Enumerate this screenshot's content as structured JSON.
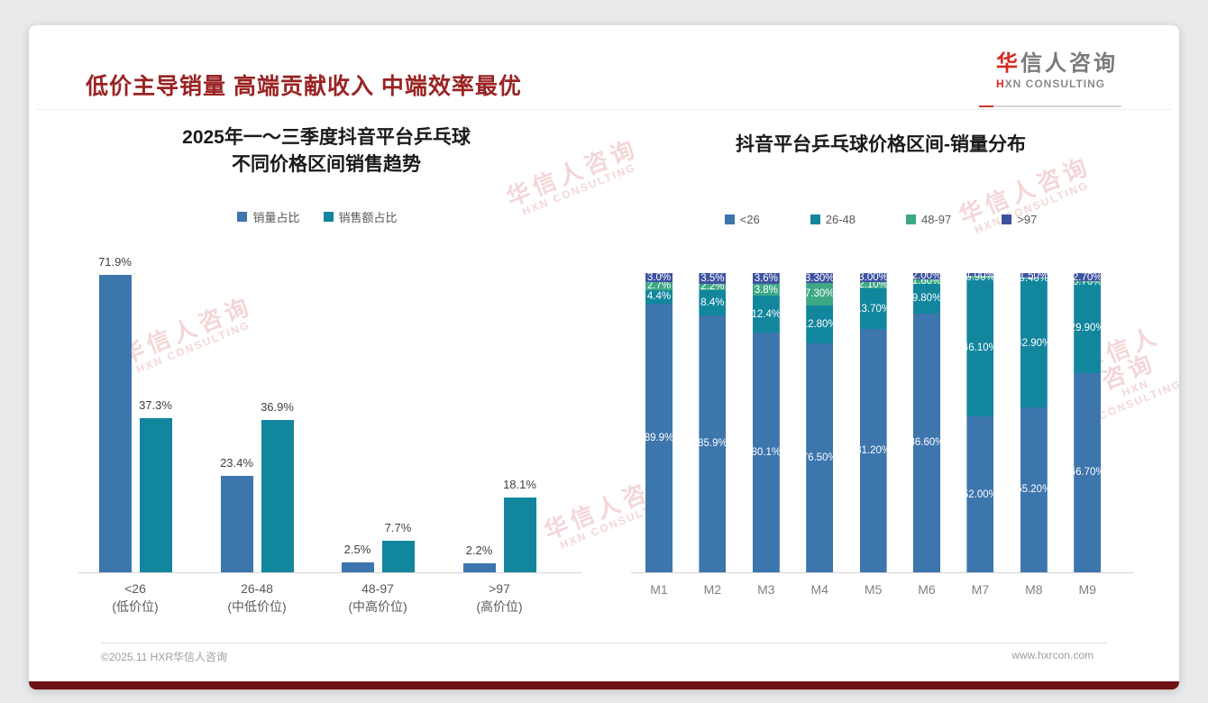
{
  "page": {
    "title": "低价主导销量 高端贡献收入 中端效率最优"
  },
  "logo": {
    "cn_accent": "华",
    "cn_rest": "信人咨询",
    "en_accent": "H",
    "en_rest": "XN CONSULTING"
  },
  "watermark": {
    "line1": "华信人咨询",
    "line2": "HXN CONSULTING"
  },
  "footer": {
    "left": "©2025.11 HXR华信人咨询",
    "right": "www.hxrcon.com"
  },
  "colors": {
    "blue": "#3D75AD",
    "teal": "#12869D",
    "green": "#3EA886",
    "indigo": "#3E53A0",
    "accent_red": "#9A2323"
  },
  "chart_data": [
    {
      "type": "bar",
      "title": "2025年一～三季度抖音平台乒乓球\n不同价格区间销售趋势",
      "categories": [
        "<26",
        "26-48",
        "48-97",
        ">97"
      ],
      "category_sublabels": [
        "(低价位)",
        "(中低价位)",
        "(中高价位)",
        "(高价位)"
      ],
      "series": [
        {
          "name": "销量占比",
          "color": "#3D75AD",
          "values": [
            71.9,
            23.4,
            2.5,
            2.2
          ],
          "labels": [
            "71.9%",
            "23.4%",
            "2.5%",
            "2.2%"
          ]
        },
        {
          "name": "销售额占比",
          "color": "#12869D",
          "values": [
            37.3,
            36.9,
            7.7,
            18.1
          ],
          "labels": [
            "37.3%",
            "36.9%",
            "7.7%",
            "18.1%"
          ]
        }
      ],
      "ylim": [
        0,
        80
      ],
      "grid": false,
      "legend_position": "top",
      "value_suffix": "%"
    },
    {
      "type": "bar",
      "subtype": "stacked",
      "title": "抖音平台乒乓球价格区间-销量分布",
      "categories": [
        "M1",
        "M2",
        "M3",
        "M4",
        "M5",
        "M6",
        "M7",
        "M8",
        "M9"
      ],
      "series": [
        {
          "name": "<26",
          "color": "#3D75AD",
          "values": [
            89.9,
            85.9,
            80.1,
            76.5,
            81.2,
            86.6,
            52.0,
            55.2,
            66.7
          ],
          "labels": [
            "89.9%",
            "85.9%",
            "80.1%",
            "76.50%",
            "81.20%",
            "86.60%",
            "52.00%",
            "55.20%",
            "66.70%"
          ]
        },
        {
          "name": "26-48",
          "color": "#12869D",
          "values": [
            4.4,
            8.4,
            12.4,
            12.8,
            13.7,
            9.8,
            46.1,
            42.9,
            29.9
          ],
          "labels": [
            "4.4%",
            "8.4%",
            "12.4%",
            "12.80%",
            "13.70%",
            "9.80%",
            "46.10%",
            "42.90%",
            "29.90%"
          ]
        },
        {
          "name": "48-97",
          "color": "#3EA886",
          "values": [
            2.7,
            2.2,
            3.8,
            7.3,
            2.1,
            1.6,
            0.9,
            0.4,
            0.7
          ],
          "labels": [
            "2.7%",
            "2.2%",
            "3.8%",
            "7.30%",
            "2.10%",
            "1.60%",
            "0.90%",
            "0.40%",
            "0.70%"
          ]
        },
        {
          "name": ">97",
          "color": "#3E53A0",
          "values": [
            3.0,
            3.5,
            3.6,
            3.3,
            3.0,
            2.0,
            1.0,
            1.5,
            2.7
          ],
          "labels": [
            "3.0%",
            "3.5%",
            "3.6%",
            "3.30%",
            "3.00%",
            "2.00%",
            "1.00%",
            "1.50%",
            "2.70%"
          ]
        }
      ],
      "ylim": [
        0,
        100
      ],
      "grid": false,
      "legend_position": "top",
      "value_suffix": "%"
    }
  ]
}
